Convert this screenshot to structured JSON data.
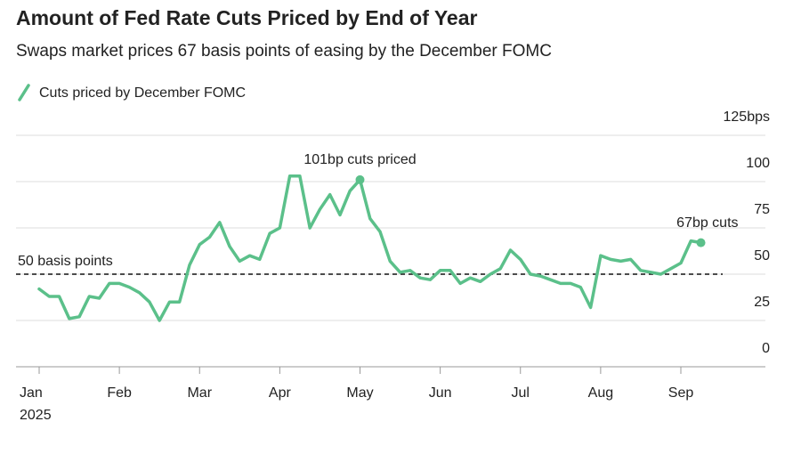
{
  "chart_data": {
    "type": "line",
    "title": "Amount of Fed Rate Cuts Priced by End of Year",
    "subtitle": "Swaps market prices 67 basis points of easing by the December FOMC",
    "categories": [
      "Jan",
      null,
      null,
      null,
      null,
      null,
      null,
      null,
      "Feb",
      null,
      null,
      null,
      null,
      null,
      null,
      null,
      "Mar",
      null,
      null,
      null,
      null,
      null,
      null,
      null,
      "Apr",
      null,
      null,
      null,
      null,
      null,
      null,
      null,
      "May",
      null,
      null,
      null,
      null,
      null,
      null,
      null,
      "Jun",
      null,
      null,
      null,
      null,
      null,
      null,
      null,
      "Jul",
      null,
      null,
      null,
      null,
      null,
      null,
      null,
      "Aug",
      null,
      null,
      null,
      null,
      null,
      null,
      null,
      "Sep",
      null,
      null
    ],
    "year_label": "2025",
    "series": [
      {
        "name": "Cuts priced by December FOMC",
        "color": "#5bc08a",
        "values": [
          42,
          38,
          38,
          26,
          27,
          38,
          37,
          45,
          45,
          43,
          40,
          35,
          25,
          35,
          35,
          55,
          66,
          70,
          78,
          65,
          57,
          60,
          58,
          72,
          75,
          103,
          103,
          75,
          85,
          93,
          82,
          95,
          101,
          80,
          73,
          57,
          51,
          52,
          48,
          47,
          52,
          52,
          45,
          48,
          46,
          50,
          53,
          63,
          58,
          50,
          49,
          47,
          45,
          45,
          43,
          32,
          60,
          58,
          57,
          58,
          52,
          51,
          50,
          53,
          56,
          68,
          67
        ]
      }
    ],
    "ylim": [
      0,
      125
    ],
    "yticks": [
      0,
      25,
      50,
      75,
      100,
      {
        "value": 125,
        "label": "125bps"
      }
    ],
    "grid": true,
    "reference_line": {
      "value": 50,
      "label": "50 basis points"
    },
    "annotations": [
      {
        "text": "101bp cuts priced",
        "value": 101
      },
      {
        "text": "67bp cuts",
        "value": 67
      }
    ]
  }
}
